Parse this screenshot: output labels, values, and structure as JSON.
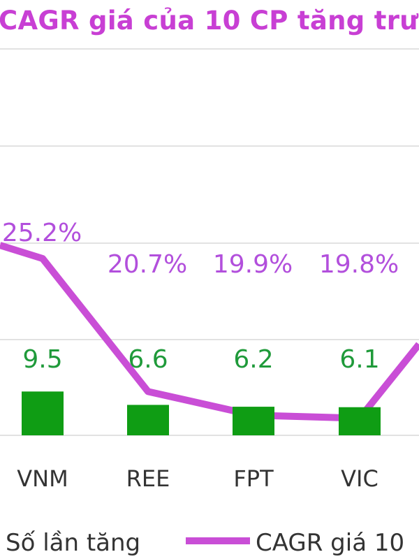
{
  "chart_data": {
    "type": "bar",
    "title": "CAGR giá của 10 CP tăng trư",
    "categories": [
      "VNM",
      "REE",
      "FPT",
      "VIC"
    ],
    "series": [
      {
        "name": "Số lần tăng",
        "type": "bar",
        "values": [
          9.5,
          6.6,
          6.2,
          6.1
        ],
        "labels": [
          "9.5",
          "6.6",
          "6.2",
          "6.1"
        ],
        "color": "#0f9d14"
      },
      {
        "name": "CAGR giá 10",
        "type": "line",
        "values": [
          25.2,
          20.7,
          19.9,
          19.8
        ],
        "labels": [
          "25.2%",
          "20.7%",
          "19.9%",
          "19.8%"
        ],
        "color": "#c94ed6"
      }
    ],
    "grid": true,
    "legend": "bottom"
  }
}
